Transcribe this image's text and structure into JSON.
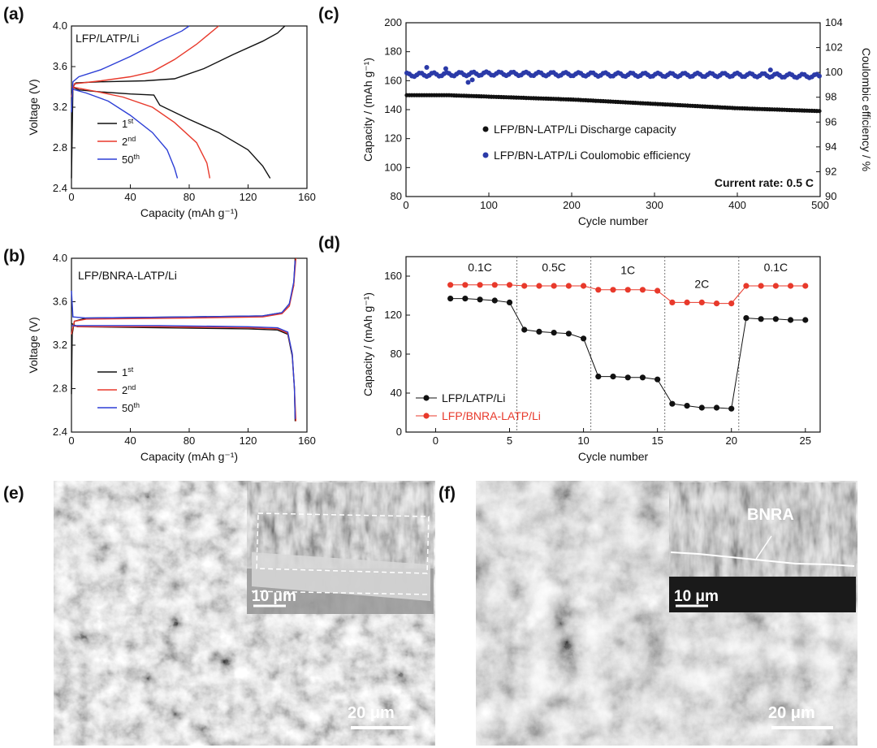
{
  "colors": {
    "black": "#111111",
    "red": "#e8392b",
    "blue": "#2d3fd6",
    "navy": "#2b3aa8"
  },
  "panels": {
    "a": "(a)",
    "b": "(b)",
    "c": "(c)",
    "d": "(d)",
    "e": "(e)",
    "f": "(f)"
  },
  "chart_data": [
    {
      "id": "a",
      "type": "line",
      "annotation": "LFP/LATP/Li",
      "xlabel": "Capacity (mAh g⁻¹)",
      "ylabel": "Voltage (V)",
      "xlim": [
        0,
        160
      ],
      "ylim": [
        2.4,
        4.0
      ],
      "xticks": [
        "0",
        "40",
        "80",
        "120",
        "160"
      ],
      "yticks": [
        "2.4",
        "2.8",
        "3.2",
        "3.6",
        "4.0"
      ],
      "legend_position": "lower-left",
      "series": [
        {
          "name": "1st",
          "color": "#111111",
          "charge": [
            [
              0,
              2.5
            ],
            [
              1,
              3.4
            ],
            [
              3,
              3.44
            ],
            [
              20,
              3.45
            ],
            [
              50,
              3.46
            ],
            [
              70,
              3.48
            ],
            [
              90,
              3.58
            ],
            [
              110,
              3.72
            ],
            [
              130,
              3.85
            ],
            [
              140,
              3.93
            ],
            [
              145,
              4.0
            ]
          ],
          "discharge": [
            [
              0,
              3.4
            ],
            [
              5,
              3.37
            ],
            [
              20,
              3.35
            ],
            [
              40,
              3.33
            ],
            [
              56,
              3.32
            ],
            [
              60,
              3.22
            ],
            [
              80,
              3.08
            ],
            [
              100,
              2.95
            ],
            [
              120,
              2.78
            ],
            [
              130,
              2.62
            ],
            [
              135,
              2.5
            ]
          ]
        },
        {
          "name": "2nd",
          "color": "#e8392b",
          "charge": [
            [
              0,
              3.3
            ],
            [
              2,
              3.43
            ],
            [
              20,
              3.46
            ],
            [
              40,
              3.5
            ],
            [
              55,
              3.55
            ],
            [
              70,
              3.67
            ],
            [
              85,
              3.82
            ],
            [
              100,
              4.0
            ]
          ],
          "discharge": [
            [
              0,
              3.4
            ],
            [
              15,
              3.36
            ],
            [
              35,
              3.3
            ],
            [
              55,
              3.2
            ],
            [
              70,
              3.05
            ],
            [
              85,
              2.85
            ],
            [
              92,
              2.65
            ],
            [
              94,
              2.5
            ]
          ]
        },
        {
          "name": "50th",
          "color": "#2d3fd6",
          "charge": [
            [
              0,
              3.15
            ],
            [
              1,
              3.45
            ],
            [
              5,
              3.5
            ],
            [
              20,
              3.57
            ],
            [
              40,
              3.7
            ],
            [
              60,
              3.85
            ],
            [
              75,
              3.95
            ],
            [
              80,
              4.0
            ]
          ],
          "discharge": [
            [
              0,
              3.38
            ],
            [
              10,
              3.34
            ],
            [
              25,
              3.26
            ],
            [
              40,
              3.12
            ],
            [
              55,
              2.95
            ],
            [
              65,
              2.78
            ],
            [
              70,
              2.6
            ],
            [
              72,
              2.5
            ]
          ]
        }
      ]
    },
    {
      "id": "b",
      "type": "line",
      "annotation": "LFP/BNRA-LATP/Li",
      "xlabel": "Capacity (mAh g⁻¹)",
      "ylabel": "Voltage (V)",
      "xlim": [
        0,
        160
      ],
      "ylim": [
        2.4,
        4.0
      ],
      "xticks": [
        "0",
        "40",
        "80",
        "120",
        "160"
      ],
      "yticks": [
        "2.4",
        "2.8",
        "3.2",
        "3.6",
        "4.0"
      ],
      "legend_position": "lower-right",
      "series": [
        {
          "name": "1st",
          "color": "#111111",
          "charge": [
            [
              0,
              2.75
            ],
            [
              0.5,
              3.3
            ],
            [
              2,
              3.42
            ],
            [
              10,
              3.45
            ],
            [
              80,
              3.46
            ],
            [
              130,
              3.47
            ],
            [
              143,
              3.5
            ],
            [
              148,
              3.58
            ],
            [
              151,
              3.75
            ],
            [
              152,
              4.0
            ]
          ],
          "discharge": [
            [
              0,
              3.4
            ],
            [
              4,
              3.37
            ],
            [
              60,
              3.36
            ],
            [
              120,
              3.35
            ],
            [
              140,
              3.34
            ],
            [
              147,
              3.3
            ],
            [
              150,
              3.1
            ],
            [
              151.5,
              2.8
            ],
            [
              152,
              2.5
            ]
          ]
        },
        {
          "name": "2nd",
          "color": "#e8392b",
          "charge": [
            [
              0,
              3.3
            ],
            [
              2,
              3.42
            ],
            [
              10,
              3.44
            ],
            [
              80,
              3.45
            ],
            [
              130,
              3.46
            ],
            [
              143,
              3.49
            ],
            [
              148,
              3.56
            ],
            [
              151,
              3.75
            ],
            [
              152.5,
              4.0
            ]
          ],
          "discharge": [
            [
              0,
              3.38
            ],
            [
              5,
              3.37
            ],
            [
              60,
              3.37
            ],
            [
              120,
              3.36
            ],
            [
              140,
              3.35
            ],
            [
              147,
              3.31
            ],
            [
              150,
              3.12
            ],
            [
              151.5,
              2.8
            ],
            [
              152.5,
              2.5
            ]
          ]
        },
        {
          "name": "50th",
          "color": "#2d3fd6",
          "charge": [
            [
              0,
              3.7
            ],
            [
              1,
              3.46
            ],
            [
              10,
              3.45
            ],
            [
              80,
              3.46
            ],
            [
              130,
              3.47
            ],
            [
              143,
              3.5
            ],
            [
              148,
              3.58
            ],
            [
              151,
              3.78
            ],
            [
              152,
              3.98
            ]
          ],
          "discharge": [
            [
              0,
              3.38
            ],
            [
              5,
              3.38
            ],
            [
              60,
              3.38
            ],
            [
              120,
              3.37
            ],
            [
              140,
              3.36
            ],
            [
              147,
              3.32
            ],
            [
              150,
              3.12
            ],
            [
              151.5,
              2.8
            ],
            [
              152,
              2.52
            ]
          ]
        }
      ]
    },
    {
      "id": "c",
      "type": "scatter",
      "xlabel": "Cycle number",
      "ylabel": "Capacity / (mAh g⁻¹)",
      "y2label": "Coulombic efficiency / %",
      "xlim": [
        0,
        500
      ],
      "ylim": [
        80,
        200
      ],
      "y2lim": [
        90,
        104
      ],
      "xticks": [
        "0",
        "100",
        "200",
        "300",
        "400",
        "500"
      ],
      "yticks": [
        "80",
        "100",
        "120",
        "140",
        "160",
        "180",
        "200"
      ],
      "y2ticks": [
        "90",
        "92",
        "94",
        "96",
        "98",
        "100",
        "102",
        "104"
      ],
      "note": "Current rate: 0.5 C",
      "series": [
        {
          "name": "LFP/BN-LATP/Li Discharge capacity",
          "color": "#111111",
          "axis": "left",
          "trend": [
            [
              1,
              150
            ],
            [
              50,
              150
            ],
            [
              100,
              149
            ],
            [
              200,
              147
            ],
            [
              300,
              144
            ],
            [
              400,
              141
            ],
            [
              500,
              139
            ]
          ]
        },
        {
          "name": "LFP/BN-LATP/Li Coulomobic efficiency",
          "color": "#2b3aa8",
          "axis": "right",
          "trend": [
            [
              1,
              99.8
            ],
            [
              100,
              99.9
            ],
            [
              200,
              99.85
            ],
            [
              300,
              99.8
            ],
            [
              400,
              99.8
            ],
            [
              500,
              99.7
            ]
          ],
          "outliers": [
            [
              25,
              100.4
            ],
            [
              48,
              100.3
            ],
            [
              75,
              99.2
            ],
            [
              80,
              99.4
            ],
            [
              440,
              100.2
            ]
          ]
        }
      ]
    },
    {
      "id": "d",
      "type": "line",
      "xlabel": "Cycle number",
      "ylabel": "Capacity / (mAh g⁻¹)",
      "xlim": [
        -2,
        26
      ],
      "ylim": [
        0,
        180
      ],
      "xticks": [
        "0",
        "5",
        "10",
        "15",
        "20",
        "25"
      ],
      "yticks": [
        "0",
        "40",
        "80",
        "120",
        "160"
      ],
      "rate_labels": [
        "0.1C",
        "0.5C",
        "1C",
        "2C",
        "0.1C"
      ],
      "dividers": [
        5.5,
        10.5,
        15.5,
        20.5
      ],
      "x": [
        1,
        2,
        3,
        4,
        5,
        6,
        7,
        8,
        9,
        10,
        11,
        12,
        13,
        14,
        15,
        16,
        17,
        18,
        19,
        20,
        21,
        22,
        23,
        24,
        25
      ],
      "series": [
        {
          "name": "LFP/LATP/Li",
          "color": "#111111",
          "values": [
            137,
            137,
            136,
            135,
            133,
            105,
            103,
            102,
            101,
            96,
            57,
            57,
            56,
            56,
            54,
            29,
            27,
            25,
            25,
            24,
            117,
            116,
            116,
            115,
            115
          ]
        },
        {
          "name": "LFP/BNRA-LATP/Li",
          "color": "#e8392b",
          "values": [
            151,
            151,
            151,
            151,
            151,
            150,
            150,
            150,
            150,
            150,
            146,
            146,
            146,
            146,
            145,
            133,
            133,
            133,
            132,
            132,
            150,
            150,
            150,
            150,
            150
          ]
        }
      ]
    }
  ],
  "sem": {
    "e": {
      "scale_main": "20 μm",
      "scale_inset": "10 μm"
    },
    "f": {
      "scale_main": "20 μm",
      "scale_inset": "10 μm",
      "inset_label": "BNRA"
    }
  }
}
